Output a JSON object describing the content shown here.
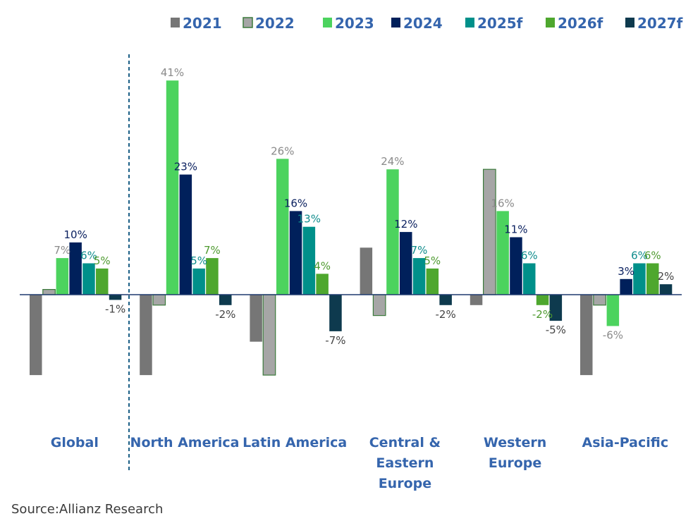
{
  "chart_data": {
    "type": "bar",
    "title": "",
    "xlabel": "",
    "ylabel": "",
    "ylim": [
      -15.4,
      45
    ],
    "grid": false,
    "legend_position": "top-right",
    "categories": [
      "Global",
      "North America",
      "Latin America",
      "Central & Eastern Europe",
      "Western Europe",
      "Asia-Pacific"
    ],
    "category_lines": [
      [
        "Global"
      ],
      [
        "North America"
      ],
      [
        "Latin America"
      ],
      [
        "Central &",
        "Eastern",
        "Europe"
      ],
      [
        "Western",
        "Europe"
      ],
      [
        "Asia-Pacific"
      ]
    ],
    "separator_after_category": "Global",
    "series": [
      {
        "name": "2021",
        "color": "#767676",
        "label_color": "#777777",
        "values": [
          -16,
          -16,
          -9,
          9,
          -2,
          -16
        ],
        "labels": [
          null,
          null,
          null,
          null,
          null,
          null
        ],
        "clipped": [
          true,
          true,
          false,
          false,
          false,
          true
        ]
      },
      {
        "name": "2022",
        "color": "#a6a6a6",
        "border": "#3b7a3b",
        "label_color": "#777777",
        "values": [
          1,
          -2,
          -16,
          -4,
          24,
          -2
        ],
        "labels": [
          null,
          null,
          null,
          null,
          null,
          null
        ],
        "clipped": [
          false,
          false,
          true,
          false,
          false,
          false
        ]
      },
      {
        "name": "2023",
        "color": "#4cd35e",
        "label_color": "#8a8a8a",
        "values": [
          7,
          41,
          26,
          24,
          16,
          -6
        ],
        "labels": [
          "7%",
          "41%",
          "26%",
          "24%",
          "16%",
          "-6%"
        ]
      },
      {
        "name": "2024",
        "color": "#00205b",
        "label_color": "#0b2160",
        "values": [
          10,
          23,
          16,
          12,
          11,
          3
        ],
        "labels": [
          "10%",
          "23%",
          "16%",
          "12%",
          "11%",
          "3%"
        ]
      },
      {
        "name": "2025f",
        "color": "#00908a",
        "label_color": "#0f8c8c",
        "values": [
          6,
          5,
          13,
          7,
          6,
          6
        ],
        "labels": [
          "6%",
          "5%",
          "13%",
          "7%",
          "6%",
          "6%"
        ]
      },
      {
        "name": "2026f",
        "color": "#4ea72e",
        "label_color": "#4e9a2f",
        "values": [
          5,
          7,
          4,
          5,
          -2,
          6
        ],
        "labels": [
          "5%",
          "7%",
          "4%",
          "5%",
          "-2%",
          "6%"
        ]
      },
      {
        "name": "2027f",
        "color": "#0e3a4e",
        "label_color": "#444444",
        "values": [
          -1,
          -2,
          -7,
          -2,
          -5,
          2
        ],
        "labels": [
          "-1%",
          "-2%",
          "-7%",
          "-2%",
          "-5%",
          "2%"
        ]
      }
    ],
    "axis_color": "#1f3a6e",
    "separator_color": "#1b5f86"
  },
  "source": "Source:Allianz Research"
}
